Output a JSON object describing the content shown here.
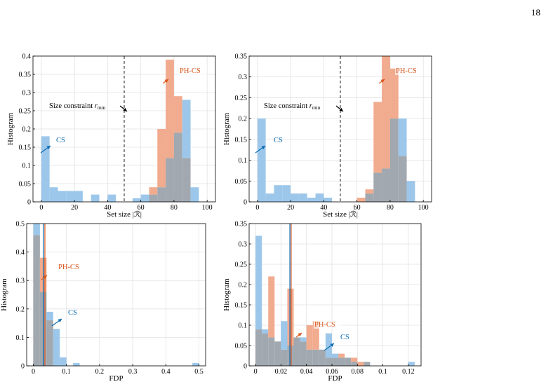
{
  "page_number": "18",
  "colors": {
    "cs_fill": "#9cc7ea",
    "phcs_fill": "#f1ab8e",
    "overlap_fill": "#a1a8b0",
    "cs_text": "#0a6ab0",
    "phcs_text": "#d7571d",
    "grid": "#e2e2e2",
    "dashed": "#333333"
  },
  "chart_data": [
    {
      "type": "bar",
      "xlabel": "Set size  |ℛ|",
      "ylabel": "Histogram",
      "xlim": [
        -5,
        105
      ],
      "ylim": [
        0,
        0.4
      ],
      "xticks": [
        "0",
        "20",
        "40",
        "60",
        "80",
        "100"
      ],
      "yticks": [
        "0",
        "0.05",
        "0.1",
        "0.15",
        "0.2",
        "0.25",
        "0.3",
        "0.35",
        "0.4"
      ],
      "xtick_values": [
        0,
        20,
        40,
        60,
        80,
        100
      ],
      "ytick_values": [
        0,
        0.05,
        0.1,
        0.15,
        0.2,
        0.25,
        0.3,
        0.35,
        0.4
      ],
      "grid": true,
      "series": [
        {
          "name": "CS",
          "bins": [
            [
              0,
              5
            ],
            [
              5,
              10
            ],
            [
              10,
              15
            ],
            [
              15,
              20
            ],
            [
              20,
              25
            ],
            [
              25,
              30
            ],
            [
              30,
              35
            ],
            [
              35,
              40
            ],
            [
              40,
              45
            ],
            [
              55,
              60
            ],
            [
              60,
              65
            ],
            [
              65,
              70
            ],
            [
              70,
              75
            ],
            [
              75,
              80
            ],
            [
              80,
              85
            ],
            [
              85,
              90
            ],
            [
              90,
              95
            ]
          ],
          "values": [
            0.18,
            0.04,
            0.03,
            0.03,
            0.03,
            0,
            0.02,
            0,
            0.02,
            0.01,
            0.02,
            0.02,
            0.04,
            0.12,
            0.19,
            0.28,
            0.04
          ]
        },
        {
          "name": "PH-CS",
          "bins": [
            [
              65,
              70
            ],
            [
              70,
              75
            ],
            [
              75,
              80
            ],
            [
              80,
              85
            ],
            [
              85,
              90
            ]
          ],
          "values": [
            0.04,
            0.2,
            0.39,
            0.29,
            0.12
          ]
        }
      ],
      "vline": {
        "x": 50,
        "label": "Size constraint",
        "label_math": "r",
        "label_sub": "min"
      },
      "annotations": {
        "cs": "CS",
        "phcs": "PH-CS"
      }
    },
    {
      "type": "bar",
      "xlabel": "Set size  |ℛ|",
      "ylabel": "Histogram",
      "xlim": [
        -5,
        105
      ],
      "ylim": [
        0,
        0.35
      ],
      "xticks": [
        "0",
        "20",
        "40",
        "60",
        "80",
        "100"
      ],
      "yticks": [
        "0",
        "0.05",
        "0.1",
        "0.15",
        "0.2",
        "0.25",
        "0.3",
        "0.35"
      ],
      "xtick_values": [
        0,
        20,
        40,
        60,
        80,
        100
      ],
      "ytick_values": [
        0,
        0.05,
        0.1,
        0.15,
        0.2,
        0.25,
        0.3,
        0.35
      ],
      "grid": true,
      "series": [
        {
          "name": "CS",
          "bins": [
            [
              0,
              5
            ],
            [
              5,
              10
            ],
            [
              10,
              15
            ],
            [
              15,
              20
            ],
            [
              20,
              25
            ],
            [
              25,
              30
            ],
            [
              30,
              35
            ],
            [
              35,
              40
            ],
            [
              40,
              45
            ],
            [
              65,
              70
            ],
            [
              70,
              75
            ],
            [
              75,
              80
            ],
            [
              80,
              85
            ],
            [
              85,
              90
            ],
            [
              90,
              95
            ]
          ],
          "values": [
            0.2,
            0.02,
            0.04,
            0.04,
            0.02,
            0.02,
            0.01,
            0.02,
            0.01,
            0.02,
            0.07,
            0.08,
            0.2,
            0.2,
            0.05
          ]
        },
        {
          "name": "PH-CS",
          "bins": [
            [
              60,
              65
            ],
            [
              65,
              70
            ],
            [
              70,
              75
            ],
            [
              75,
              80
            ],
            [
              80,
              85
            ],
            [
              85,
              90
            ]
          ],
          "values": [
            0.01,
            0.03,
            0.24,
            0.35,
            0.32,
            0.11
          ]
        }
      ],
      "vline": {
        "x": 50,
        "label": "Size constraint",
        "label_math": "r",
        "label_sub": "min"
      },
      "annotations": {
        "cs": "CS",
        "phcs": "PH-CS"
      }
    },
    {
      "type": "bar",
      "xlabel": "FDP",
      "ylabel": "Histogram",
      "xlim": [
        -0.02,
        0.52
      ],
      "ylim": [
        0,
        0.5
      ],
      "xticks": [
        "0",
        "0.1",
        "0.2",
        "0.3",
        "0.4",
        "0.5"
      ],
      "yticks": [
        "0",
        "0.1",
        "0.2",
        "0.3",
        "0.4",
        "0.5"
      ],
      "xtick_values": [
        0,
        0.1,
        0.2,
        0.3,
        0.4,
        0.5
      ],
      "ytick_values": [
        0,
        0.1,
        0.2,
        0.3,
        0.4,
        0.5
      ],
      "grid": true,
      "series": [
        {
          "name": "CS",
          "bins": [
            [
              0,
              0.02
            ],
            [
              0.02,
              0.04
            ],
            [
              0.04,
              0.06
            ],
            [
              0.06,
              0.08
            ],
            [
              0.08,
              0.1
            ],
            [
              0.12,
              0.14
            ],
            [
              0.48,
              0.5
            ]
          ],
          "values": [
            0.5,
            0.26,
            0.19,
            0.13,
            0.03,
            0.01,
            0.01
          ]
        },
        {
          "name": "PH-CS",
          "bins": [
            [
              0,
              0.02
            ],
            [
              0.02,
              0.04
            ],
            [
              0.04,
              0.06
            ]
          ],
          "values": [
            0.46,
            0.38,
            0.16
          ]
        }
      ],
      "mean_lines": {
        "cs": 0.03,
        "phcs": 0.035
      },
      "annotations": {
        "cs": "CS",
        "phcs": "PH-CS"
      }
    },
    {
      "type": "bar",
      "xlabel": "FDP",
      "ylabel": "Histogram",
      "xlim": [
        -0.005,
        0.13
      ],
      "ylim": [
        0,
        0.35
      ],
      "xticks": [
        "0",
        "0.02",
        "0.04",
        "0.06",
        "0.08",
        "0.1",
        "0.12"
      ],
      "yticks": [
        "0",
        "0.05",
        "0.1",
        "0.15",
        "0.2",
        "0.25",
        "0.3",
        "0.35"
      ],
      "xtick_values": [
        0,
        0.02,
        0.04,
        0.06,
        0.08,
        0.1,
        0.12
      ],
      "ytick_values": [
        0,
        0.05,
        0.1,
        0.15,
        0.2,
        0.25,
        0.3,
        0.35
      ],
      "grid": true,
      "series": [
        {
          "name": "CS",
          "bins": [
            [
              0,
              0.005
            ],
            [
              0.005,
              0.01
            ],
            [
              0.01,
              0.015
            ],
            [
              0.015,
              0.02
            ],
            [
              0.02,
              0.025
            ],
            [
              0.025,
              0.03
            ],
            [
              0.03,
              0.035
            ],
            [
              0.035,
              0.04
            ],
            [
              0.04,
              0.045
            ],
            [
              0.045,
              0.05
            ],
            [
              0.05,
              0.055
            ],
            [
              0.055,
              0.06
            ],
            [
              0.06,
              0.065
            ],
            [
              0.065,
              0.07
            ],
            [
              0.07,
              0.075
            ],
            [
              0.075,
              0.08
            ],
            [
              0.085,
              0.09
            ],
            [
              0.12,
              0.125
            ]
          ],
          "values": [
            0.32,
            0.09,
            0.07,
            0.06,
            0.11,
            0.05,
            0.07,
            0.07,
            0.04,
            0.04,
            0.04,
            0.08,
            0.03,
            0.02,
            0.02,
            0.01,
            0.01,
            0.01
          ]
        },
        {
          "name": "PH-CS",
          "bins": [
            [
              0,
              0.005
            ],
            [
              0.005,
              0.01
            ],
            [
              0.01,
              0.015
            ],
            [
              0.015,
              0.02
            ],
            [
              0.02,
              0.025
            ],
            [
              0.025,
              0.03
            ],
            [
              0.03,
              0.035
            ],
            [
              0.035,
              0.04
            ],
            [
              0.04,
              0.045
            ],
            [
              0.045,
              0.05
            ],
            [
              0.05,
              0.055
            ],
            [
              0.055,
              0.06
            ],
            [
              0.06,
              0.065
            ],
            [
              0.065,
              0.07
            ],
            [
              0.07,
              0.075
            ],
            [
              0.075,
              0.08
            ],
            [
              0.08,
              0.085
            ],
            [
              0.085,
              0.09
            ]
          ],
          "values": [
            0.09,
            0.08,
            0.22,
            0.06,
            0.04,
            0.19,
            0.07,
            0.06,
            0.1,
            0.11,
            0.04,
            0.02,
            0.02,
            0.03,
            0.02,
            0.02,
            0.01,
            0.01
          ]
        }
      ],
      "mean_lines": {
        "cs": 0.027,
        "phcs": 0.028
      },
      "annotations": {
        "cs": "CS",
        "phcs": "PH-CS"
      }
    }
  ]
}
